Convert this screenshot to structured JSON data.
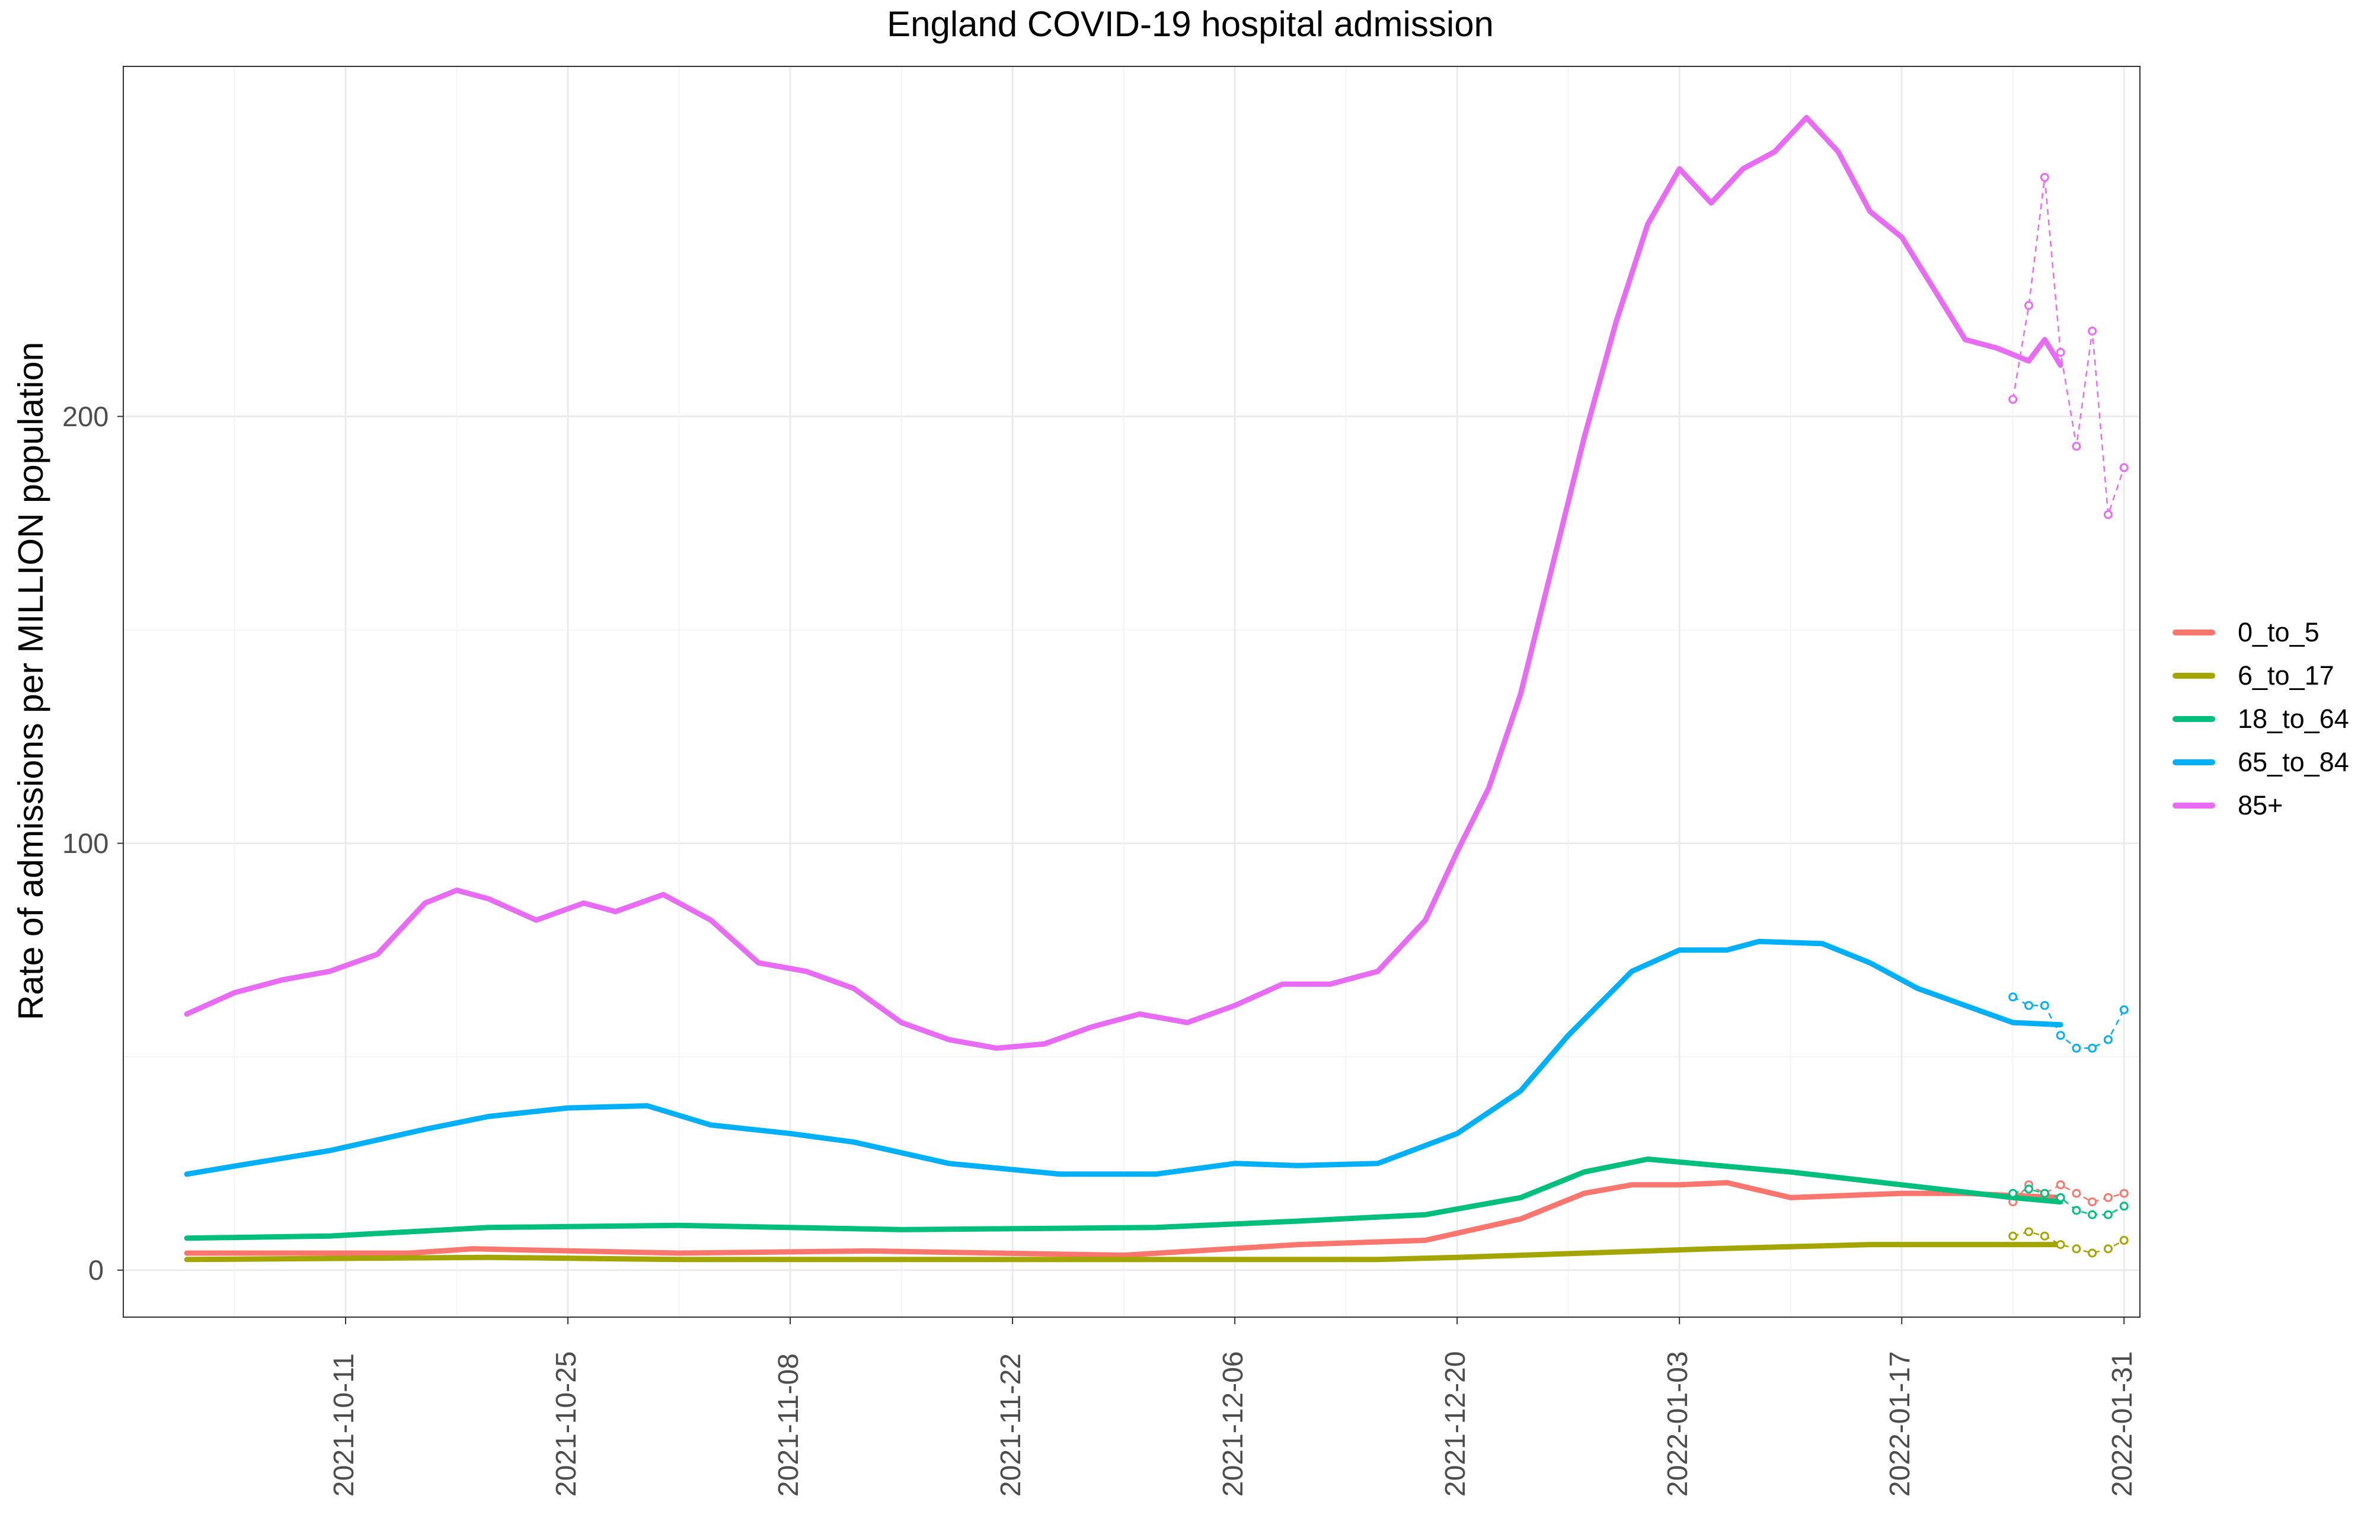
{
  "chart_data": {
    "type": "line",
    "title": "England COVID-19 hospital admission",
    "xlabel": "",
    "ylabel": "Rate of admissions per MILLION population",
    "x_range": [
      "2021-09-27",
      "2022-02-01"
    ],
    "ylim": [
      -11,
      282
    ],
    "y_ticks": [
      0,
      100,
      200
    ],
    "y_tick_labels": [
      "0",
      "100",
      "200"
    ],
    "x_ticks": [
      "2021-10-11",
      "2021-10-25",
      "2021-11-08",
      "2021-11-22",
      "2021-12-06",
      "2021-12-20",
      "2022-01-03",
      "2022-01-17",
      "2022-01-31"
    ],
    "x_tick_labels": [
      "2021-10-11",
      "2021-10-25",
      "2021-11-08",
      "2021-11-22",
      "2021-12-06",
      "2021-12-20",
      "2022-01-03",
      "2022-01-17",
      "2022-01-31"
    ],
    "grid": true,
    "legend_position": "right",
    "series": [
      {
        "name": "0_to_5",
        "color": "#F8766D",
        "points": [
          [
            "2021-10-01",
            4
          ],
          [
            "2021-10-15",
            4
          ],
          [
            "2021-10-19",
            5
          ],
          [
            "2021-11-01",
            4
          ],
          [
            "2021-11-13",
            4.5
          ],
          [
            "2021-11-29",
            3.5
          ],
          [
            "2021-12-10",
            6
          ],
          [
            "2021-12-18",
            7
          ],
          [
            "2021-12-24",
            12
          ],
          [
            "2021-12-28",
            18
          ],
          [
            "2021-12-31",
            20
          ],
          [
            "2022-01-03",
            20
          ],
          [
            "2022-01-06",
            20.5
          ],
          [
            "2022-01-10",
            17
          ],
          [
            "2022-01-17",
            18
          ],
          [
            "2022-01-21",
            18
          ],
          [
            "2022-01-27",
            17
          ]
        ],
        "recent": [
          [
            "2022-01-24",
            16
          ],
          [
            "2022-01-25",
            20
          ],
          [
            "2022-01-26",
            18
          ],
          [
            "2022-01-27",
            20
          ],
          [
            "2022-01-28",
            18
          ],
          [
            "2022-01-29",
            16
          ],
          [
            "2022-01-30",
            17
          ],
          [
            "2022-01-31",
            18
          ]
        ]
      },
      {
        "name": "6_to_17",
        "color": "#A3A500",
        "points": [
          [
            "2021-10-01",
            2.5
          ],
          [
            "2021-10-20",
            3
          ],
          [
            "2021-11-01",
            2.5
          ],
          [
            "2021-11-15",
            2.5
          ],
          [
            "2021-12-01",
            2.5
          ],
          [
            "2021-12-15",
            2.5
          ],
          [
            "2021-12-20",
            3
          ],
          [
            "2021-12-28",
            4
          ],
          [
            "2022-01-05",
            5
          ],
          [
            "2022-01-15",
            6
          ],
          [
            "2022-01-20",
            6
          ],
          [
            "2022-01-27",
            6
          ]
        ],
        "recent": [
          [
            "2022-01-24",
            8
          ],
          [
            "2022-01-25",
            9
          ],
          [
            "2022-01-26",
            8
          ],
          [
            "2022-01-27",
            6
          ],
          [
            "2022-01-28",
            5
          ],
          [
            "2022-01-29",
            4
          ],
          [
            "2022-01-30",
            5
          ],
          [
            "2022-01-31",
            7
          ]
        ]
      },
      {
        "name": "18_to_64",
        "color": "#00BF7D",
        "points": [
          [
            "2021-10-01",
            7.5
          ],
          [
            "2021-10-10",
            8
          ],
          [
            "2021-10-20",
            10
          ],
          [
            "2021-11-01",
            10.5
          ],
          [
            "2021-11-15",
            9.5
          ],
          [
            "2021-12-01",
            10
          ],
          [
            "2021-12-10",
            11.5
          ],
          [
            "2021-12-18",
            13
          ],
          [
            "2021-12-24",
            17
          ],
          [
            "2021-12-28",
            23
          ],
          [
            "2022-01-01",
            26
          ],
          [
            "2022-01-04",
            25
          ],
          [
            "2022-01-10",
            23
          ],
          [
            "2022-01-17",
            20
          ],
          [
            "2022-01-24",
            17
          ],
          [
            "2022-01-27",
            16
          ]
        ],
        "recent": [
          [
            "2022-01-24",
            18
          ],
          [
            "2022-01-25",
            19
          ],
          [
            "2022-01-26",
            18
          ],
          [
            "2022-01-27",
            17
          ],
          [
            "2022-01-28",
            14
          ],
          [
            "2022-01-29",
            13
          ],
          [
            "2022-01-30",
            13
          ],
          [
            "2022-01-31",
            15
          ]
        ]
      },
      {
        "name": "65_to_84",
        "color": "#00B0F6",
        "points": [
          [
            "2021-10-01",
            22.5
          ],
          [
            "2021-10-05",
            25
          ],
          [
            "2021-10-10",
            28
          ],
          [
            "2021-10-16",
            33
          ],
          [
            "2021-10-20",
            36
          ],
          [
            "2021-10-25",
            38
          ],
          [
            "2021-10-30",
            38.5
          ],
          [
            "2021-11-03",
            34
          ],
          [
            "2021-11-08",
            32
          ],
          [
            "2021-11-12",
            30
          ],
          [
            "2021-11-18",
            25
          ],
          [
            "2021-11-25",
            22.5
          ],
          [
            "2021-12-01",
            22.5
          ],
          [
            "2021-12-06",
            25
          ],
          [
            "2021-12-10",
            24.5
          ],
          [
            "2021-12-15",
            25
          ],
          [
            "2021-12-20",
            32
          ],
          [
            "2021-12-24",
            42
          ],
          [
            "2021-12-27",
            55
          ],
          [
            "2021-12-31",
            70
          ],
          [
            "2022-01-03",
            75
          ],
          [
            "2022-01-06",
            75
          ],
          [
            "2022-01-08",
            77
          ],
          [
            "2022-01-12",
            76.5
          ],
          [
            "2022-01-15",
            72
          ],
          [
            "2022-01-18",
            66
          ],
          [
            "2022-01-21",
            62
          ],
          [
            "2022-01-24",
            58
          ],
          [
            "2022-01-27",
            57.5
          ]
        ],
        "recent": [
          [
            "2022-01-24",
            64
          ],
          [
            "2022-01-25",
            62
          ],
          [
            "2022-01-26",
            62
          ],
          [
            "2022-01-27",
            55
          ],
          [
            "2022-01-28",
            52
          ],
          [
            "2022-01-29",
            52
          ],
          [
            "2022-01-30",
            54
          ],
          [
            "2022-01-31",
            61
          ]
        ]
      },
      {
        "name": "85+",
        "color": "#E76BF3",
        "points": [
          [
            "2021-10-01",
            60
          ],
          [
            "2021-10-04",
            65
          ],
          [
            "2021-10-07",
            68
          ],
          [
            "2021-10-10",
            70
          ],
          [
            "2021-10-13",
            74
          ],
          [
            "2021-10-16",
            86
          ],
          [
            "2021-10-18",
            89
          ],
          [
            "2021-10-20",
            87
          ],
          [
            "2021-10-23",
            82
          ],
          [
            "2021-10-26",
            86
          ],
          [
            "2021-10-28",
            84
          ],
          [
            "2021-10-31",
            88
          ],
          [
            "2021-11-03",
            82
          ],
          [
            "2021-11-06",
            72
          ],
          [
            "2021-11-09",
            70
          ],
          [
            "2021-11-12",
            66
          ],
          [
            "2021-11-15",
            58
          ],
          [
            "2021-11-18",
            54
          ],
          [
            "2021-11-21",
            52
          ],
          [
            "2021-11-24",
            53
          ],
          [
            "2021-11-27",
            57
          ],
          [
            "2021-11-30",
            60
          ],
          [
            "2021-12-03",
            58
          ],
          [
            "2021-12-06",
            62
          ],
          [
            "2021-12-09",
            67
          ],
          [
            "2021-12-12",
            67
          ],
          [
            "2021-12-15",
            70
          ],
          [
            "2021-12-18",
            82
          ],
          [
            "2021-12-20",
            98
          ],
          [
            "2021-12-22",
            113
          ],
          [
            "2021-12-24",
            135
          ],
          [
            "2021-12-26",
            165
          ],
          [
            "2021-12-28",
            195
          ],
          [
            "2021-12-30",
            222
          ],
          [
            "2022-01-01",
            245
          ],
          [
            "2022-01-03",
            258
          ],
          [
            "2022-01-05",
            250
          ],
          [
            "2022-01-07",
            258
          ],
          [
            "2022-01-09",
            262
          ],
          [
            "2022-01-11",
            270
          ],
          [
            "2022-01-13",
            262
          ],
          [
            "2022-01-15",
            248
          ],
          [
            "2022-01-17",
            242
          ],
          [
            "2022-01-19",
            230
          ],
          [
            "2022-01-21",
            218
          ],
          [
            "2022-01-23",
            216
          ],
          [
            "2022-01-25",
            213
          ],
          [
            "2022-01-26",
            218
          ],
          [
            "2022-01-27",
            212
          ]
        ],
        "recent": [
          [
            "2022-01-24",
            204
          ],
          [
            "2022-01-25",
            226
          ],
          [
            "2022-01-26",
            256
          ],
          [
            "2022-01-27",
            215
          ],
          [
            "2022-01-28",
            193
          ],
          [
            "2022-01-29",
            220
          ],
          [
            "2022-01-30",
            177
          ],
          [
            "2022-01-31",
            188
          ]
        ]
      }
    ]
  }
}
